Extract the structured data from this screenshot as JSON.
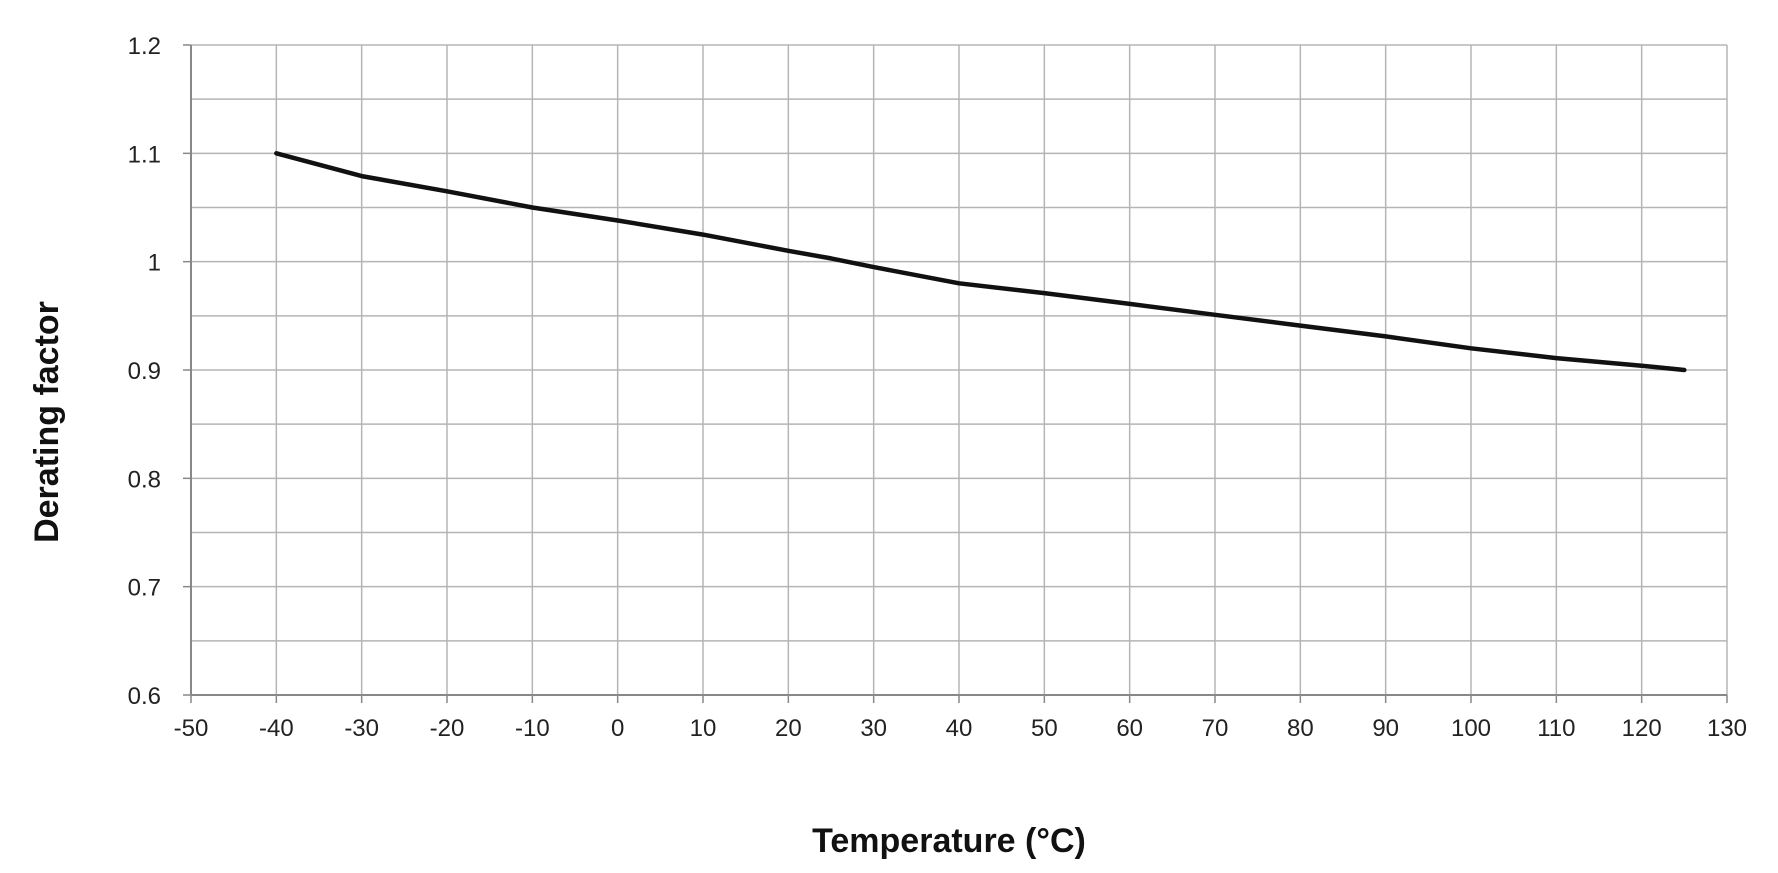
{
  "chart_data": {
    "type": "line",
    "title": "",
    "xlabel": "Temperature (°C)",
    "ylabel": "Derating factor",
    "xlim": [
      -50,
      130
    ],
    "ylim": [
      0.6,
      1.2
    ],
    "x_ticks": [
      -50,
      -40,
      -30,
      -20,
      -10,
      0,
      10,
      20,
      30,
      40,
      50,
      60,
      70,
      80,
      90,
      100,
      110,
      120,
      130
    ],
    "y_ticks": [
      0.6,
      0.7,
      0.8,
      0.9,
      1.0,
      1.1,
      1.2
    ],
    "y_tick_labels": [
      "0.6",
      "0.7",
      "0.8",
      "0.9",
      "1",
      "1.1",
      "1.2"
    ],
    "grid": true,
    "legend": "none",
    "colors": {
      "line": "#111111",
      "grid": "#b5b5b5",
      "axis": "#888888"
    },
    "series": [
      {
        "x": [
          -40,
          -30,
          -20,
          -10,
          0,
          10,
          20,
          25,
          30,
          40,
          50,
          60,
          70,
          80,
          90,
          100,
          110,
          120,
          125
        ],
        "y": [
          1.1,
          1.079,
          1.065,
          1.05,
          1.038,
          1.025,
          1.01,
          1.003,
          0.995,
          0.98,
          0.971,
          0.961,
          0.951,
          0.941,
          0.931,
          0.92,
          0.911,
          0.904,
          0.9
        ]
      }
    ]
  }
}
